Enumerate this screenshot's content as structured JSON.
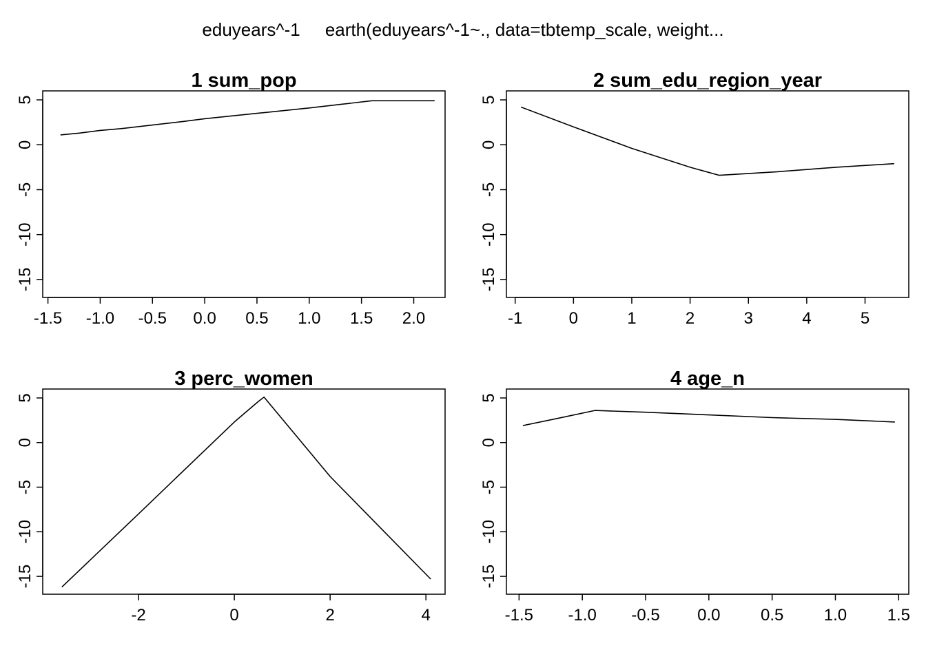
{
  "figure": {
    "title": "eduyears^-1     earth(eduyears^-1~., data=tbtemp_scale, weight...",
    "colors": {
      "line": "#000000",
      "axis": "#000000",
      "background": "#ffffff"
    }
  },
  "chart_data": [
    {
      "type": "line",
      "title": "1  sum_pop",
      "xlim": [
        -1.55,
        2.3
      ],
      "ylim": [
        -17,
        6
      ],
      "x_ticks": [
        -1.5,
        -1.0,
        -0.5,
        0.0,
        0.5,
        1.0,
        1.5,
        2.0
      ],
      "x_tick_labels": [
        "-1.5",
        "-1.0",
        "-0.5",
        "0.0",
        "0.5",
        "1.0",
        "1.5",
        "2.0"
      ],
      "y_ticks": [
        5,
        0,
        -5,
        -10,
        -15
      ],
      "y_tick_labels": [
        "5",
        "0",
        "-5",
        "-10",
        "-15"
      ],
      "x": [
        -1.38,
        -1.2,
        -1.0,
        -0.8,
        -0.5,
        -0.2,
        0.0,
        0.5,
        1.0,
        1.3,
        1.6,
        2.2
      ],
      "y": [
        1.1,
        1.3,
        1.6,
        1.8,
        2.2,
        2.6,
        2.9,
        3.5,
        4.1,
        4.5,
        4.9,
        4.9
      ]
    },
    {
      "type": "line",
      "title": "2  sum_edu_region_year",
      "xlim": [
        -1.15,
        5.75
      ],
      "ylim": [
        -17,
        6
      ],
      "x_ticks": [
        -1,
        0,
        1,
        2,
        3,
        4,
        5
      ],
      "x_tick_labels": [
        "-1",
        "0",
        "1",
        "2",
        "3",
        "4",
        "5"
      ],
      "y_ticks": [
        5,
        0,
        -5,
        -10,
        -15
      ],
      "y_tick_labels": [
        "5",
        "0",
        "-5",
        "-10",
        "-15"
      ],
      "x": [
        -0.9,
        0.0,
        1.0,
        2.0,
        2.5,
        3.5,
        4.5,
        5.5
      ],
      "y": [
        4.2,
        2.0,
        -0.4,
        -2.5,
        -3.4,
        -3.0,
        -2.5,
        -2.1
      ]
    },
    {
      "type": "line",
      "title": "3  perc_women",
      "xlim": [
        -4.0,
        4.4
      ],
      "ylim": [
        -17,
        6
      ],
      "x_ticks": [
        -2,
        0,
        2,
        4
      ],
      "x_tick_labels": [
        "-2",
        "0",
        "2",
        "4"
      ],
      "y_ticks": [
        5,
        0,
        -5,
        -10,
        -15
      ],
      "y_tick_labels": [
        "5",
        "0",
        "-5",
        "-10",
        "-15"
      ],
      "x": [
        -3.6,
        -2.0,
        0.0,
        0.5,
        0.62,
        2.0,
        4.1
      ],
      "y": [
        -16.2,
        -8.0,
        2.3,
        4.6,
        5.1,
        -3.8,
        -15.3
      ]
    },
    {
      "type": "line",
      "title": "4  age_n",
      "xlim": [
        -1.6,
        1.58
      ],
      "ylim": [
        -17,
        6
      ],
      "x_ticks": [
        -1.5,
        -1.0,
        -0.5,
        0.0,
        0.5,
        1.0,
        1.5
      ],
      "x_tick_labels": [
        "-1.5",
        "-1.0",
        "-0.5",
        "0.0",
        "0.5",
        "1.0",
        "1.5"
      ],
      "y_ticks": [
        5,
        0,
        -5,
        -10,
        -15
      ],
      "y_tick_labels": [
        "5",
        "0",
        "-5",
        "-10",
        "-15"
      ],
      "x": [
        -1.47,
        -1.2,
        -0.9,
        -0.5,
        0.0,
        0.5,
        1.0,
        1.47
      ],
      "y": [
        1.9,
        2.7,
        3.6,
        3.4,
        3.1,
        2.8,
        2.6,
        2.3
      ]
    }
  ]
}
